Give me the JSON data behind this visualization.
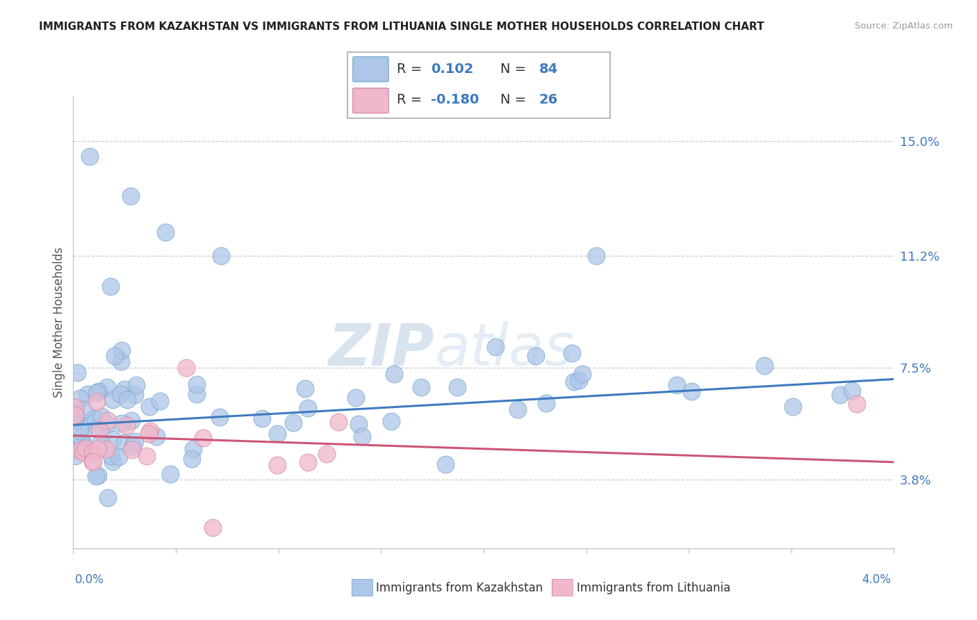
{
  "title": "IMMIGRANTS FROM KAZAKHSTAN VS IMMIGRANTS FROM LITHUANIA SINGLE MOTHER HOUSEHOLDS CORRELATION CHART",
  "source": "Source: ZipAtlas.com",
  "ylabel": "Single Mother Households",
  "ytick_vals": [
    3.8,
    7.5,
    11.2,
    15.0
  ],
  "ytick_labels": [
    "3.8%",
    "7.5%",
    "11.2%",
    "15.0%"
  ],
  "color_kaz_fill": "#aec6e8",
  "color_kaz_edge": "#7aaad0",
  "color_kaz_line": "#3d7abf",
  "color_lit_fill": "#f0b8cc",
  "color_lit_edge": "#d888a8",
  "color_lit_line": "#cc5577",
  "watermark_color": "#c8d8ec",
  "xmin": 0.0,
  "xmax": 4.0,
  "ymin": 1.5,
  "ymax": 16.5,
  "n_kaz": 84,
  "n_lit": 26,
  "kaz_trend_intercept": 5.6,
  "kaz_trend_slope": 0.38,
  "lit_trend_intercept": 5.25,
  "lit_trend_slope": -0.22,
  "legend_text_color_blue": "#3d7abf",
  "legend_text_color_pink": "#cc5577",
  "legend_text_color_dark": "#333333",
  "bottom_label_color": "#3d7abf",
  "title_color": "#222222",
  "source_color": "#999999",
  "ylabel_color": "#555555",
  "grid_color": "#cccccc",
  "spine_color": "#bbbbbb"
}
